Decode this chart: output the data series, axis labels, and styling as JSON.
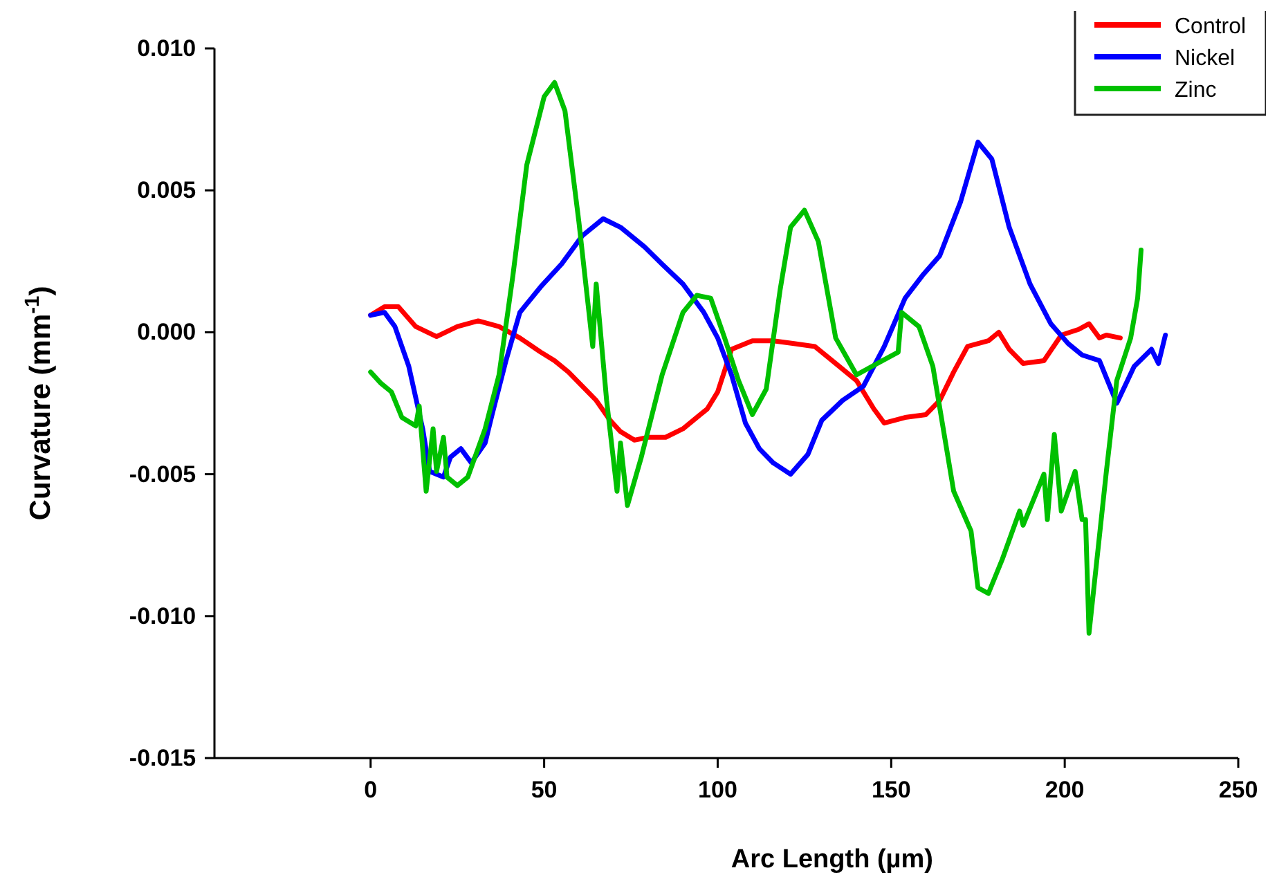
{
  "chart_data": {
    "type": "line",
    "xlabel": "Arc Length (µm)",
    "ylabel": "Curvature (mm$^{-1}$)",
    "xlim": [
      -45,
      250
    ],
    "ylim": [
      -0.015,
      0.01
    ],
    "xticks": [
      0,
      50,
      100,
      150,
      200,
      250
    ],
    "yticks": [
      {
        "value": -0.015,
        "label": "-0.015"
      },
      {
        "value": -0.01,
        "label": "-0.010"
      },
      {
        "value": -0.005,
        "label": "-0.005"
      },
      {
        "value": 0,
        "label": "0.000"
      },
      {
        "value": 0.005,
        "label": "0.005"
      },
      {
        "value": 0.01,
        "label": "0.010"
      }
    ],
    "grid": false,
    "legend": "top right",
    "line_style": "solid",
    "marker": "none",
    "series": [
      {
        "name": "Control",
        "color": "#ff0000",
        "x": [
          0,
          4,
          8,
          13,
          19,
          25,
          31,
          37,
          43,
          49,
          53,
          57,
          61,
          65,
          69,
          72,
          76,
          80,
          85,
          90,
          94,
          97,
          100,
          104,
          110,
          116,
          122,
          128,
          134,
          140,
          145,
          148,
          154,
          160,
          164,
          168,
          172,
          178,
          181,
          184,
          188,
          194,
          199,
          204,
          207,
          210,
          212,
          216
        ],
        "values": [
          0.0006,
          0.0009,
          0.0009,
          0.0002,
          -0.00015,
          0.0002,
          0.0004,
          0.0002,
          -0.0002,
          -0.0007,
          -0.001,
          -0.0014,
          -0.0019,
          -0.0024,
          -0.0031,
          -0.0035,
          -0.0038,
          -0.0037,
          -0.0037,
          -0.0034,
          -0.003,
          -0.0027,
          -0.0021,
          -0.0006,
          -0.0003,
          -0.0003,
          -0.0004,
          -0.0005,
          -0.0011,
          -0.0017,
          -0.0027,
          -0.0032,
          -0.003,
          -0.0029,
          -0.0024,
          -0.0014,
          -0.0005,
          -0.0003,
          0,
          -0.0006,
          -0.0011,
          -0.001,
          -0.0001,
          0.0001,
          0.0003,
          -0.0002,
          -0.0001,
          -0.0002
        ]
      },
      {
        "name": "Nickel",
        "color": "#0000ff",
        "x": [
          0,
          4,
          7,
          11,
          15,
          17,
          21,
          23,
          26,
          29,
          33,
          35,
          39,
          43,
          49,
          55,
          61,
          67,
          72,
          79,
          84,
          90,
          96,
          100,
          104,
          108,
          112,
          116,
          121,
          126,
          130,
          136,
          142,
          148,
          154,
          159,
          164,
          170,
          175,
          179,
          184,
          190,
          196,
          201,
          205,
          210,
          212,
          215,
          220,
          225,
          227,
          229
        ],
        "values": [
          0.0006,
          0.0007,
          0.0002,
          -0.0012,
          -0.0034,
          -0.0049,
          -0.0051,
          -0.0044,
          -0.0041,
          -0.0046,
          -0.0039,
          -0.0029,
          -0.001,
          0.0007,
          0.0016,
          0.0024,
          0.0034,
          0.004,
          0.0037,
          0.003,
          0.0024,
          0.0017,
          0.0007,
          -0.0002,
          -0.0015,
          -0.0032,
          -0.0041,
          -0.0046,
          -0.005,
          -0.0043,
          -0.0031,
          -0.0024,
          -0.0019,
          -0.0005,
          0.0012,
          0.002,
          0.0027,
          0.0046,
          0.0067,
          0.0061,
          0.0037,
          0.0017,
          0.0003,
          -0.0004,
          -0.0008,
          -0.001,
          -0.0016,
          -0.0025,
          -0.0012,
          -0.0006,
          -0.0011,
          -0.0001
        ]
      },
      {
        "name": "Zinc",
        "color": "#00c000",
        "x": [
          0,
          3,
          6,
          9,
          13,
          14,
          16,
          18,
          19,
          21,
          22,
          25,
          28,
          33,
          37,
          41,
          45,
          50,
          53,
          56,
          60,
          64,
          65,
          68,
          71,
          72,
          74,
          78,
          84,
          90,
          94,
          98,
          102,
          106,
          110,
          114,
          118,
          121,
          125,
          129,
          134,
          140,
          146,
          152,
          153,
          158,
          162,
          168,
          173,
          175,
          178,
          182,
          187,
          188,
          194,
          195,
          197,
          199,
          203,
          205,
          206,
          207,
          212,
          215,
          219,
          221,
          222
        ],
        "values": [
          -0.0014,
          -0.0018,
          -0.0021,
          -0.003,
          -0.0033,
          -0.0026,
          -0.0056,
          -0.0034,
          -0.0049,
          -0.0037,
          -0.0051,
          -0.0054,
          -0.0051,
          -0.0034,
          -0.0015,
          0.002,
          0.0059,
          0.0083,
          0.0088,
          0.0078,
          0.0039,
          -0.0005,
          0.0017,
          -0.0024,
          -0.0056,
          -0.0039,
          -0.0061,
          -0.0044,
          -0.0015,
          0.0007,
          0.0013,
          0.0012,
          -0.0002,
          -0.0017,
          -0.0029,
          -0.002,
          0.0015,
          0.0037,
          0.0043,
          0.0032,
          -0.0002,
          -0.0015,
          -0.0011,
          -0.0007,
          0.0007,
          0.0002,
          -0.0012,
          -0.0056,
          -0.007,
          -0.009,
          -0.0092,
          -0.008,
          -0.0063,
          -0.0068,
          -0.005,
          -0.0066,
          -0.0036,
          -0.0063,
          -0.0049,
          -0.0066,
          -0.0066,
          -0.0106,
          -0.0049,
          -0.0017,
          -0.0002,
          0.0012,
          0.0029
        ]
      }
    ]
  }
}
